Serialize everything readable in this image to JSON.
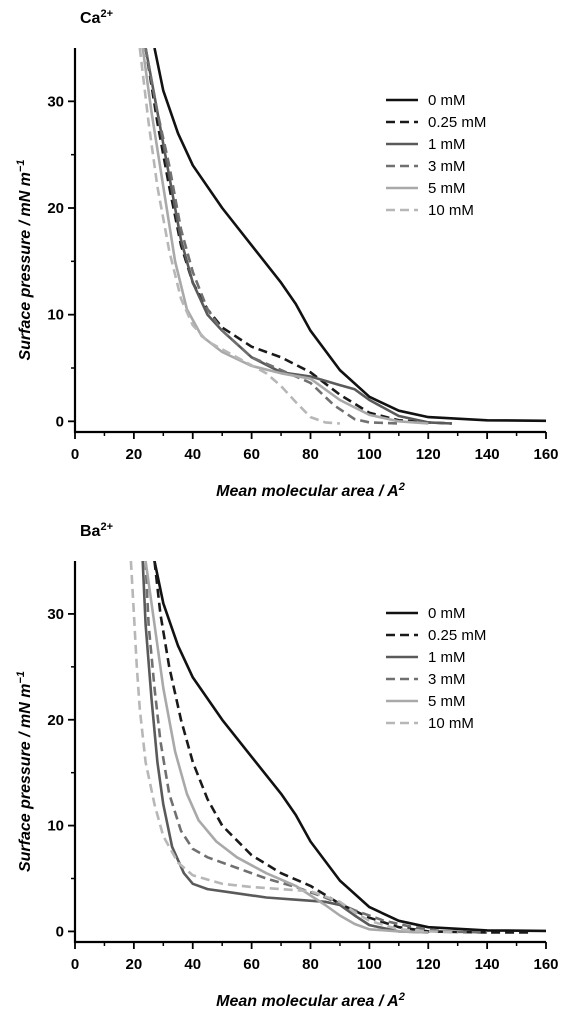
{
  "chart_data": [
    {
      "type": "line",
      "title": "Ca",
      "title_superscript": "2+",
      "xlabel": "Mean molecular area / A",
      "xlabel_superscript": "2",
      "ylabel": "Surface pressure / mN m",
      "ylabel_superscript": "−1",
      "xlim": [
        0,
        160
      ],
      "ylim": [
        -1,
        35
      ],
      "xticks": [
        0,
        20,
        40,
        60,
        80,
        100,
        120,
        140,
        160
      ],
      "yticks": [
        0,
        10,
        20,
        30
      ],
      "grid": false,
      "legend_position": "top-right",
      "series": [
        {
          "name": "0 mM",
          "color": "#111111",
          "dash": "solid",
          "points": [
            [
              27,
              35
            ],
            [
              30,
              31
            ],
            [
              35,
              27
            ],
            [
              40,
              24
            ],
            [
              50,
              20
            ],
            [
              60,
              16.5
            ],
            [
              70,
              13
            ],
            [
              75,
              11
            ],
            [
              80,
              8.5
            ],
            [
              90,
              4.8
            ],
            [
              100,
              2.3
            ],
            [
              110,
              1
            ],
            [
              120,
              0.4
            ],
            [
              140,
              0.1
            ],
            [
              160,
              0.05
            ]
          ]
        },
        {
          "name": "0.25 mM",
          "color": "#1a1a1a",
          "dash": "dashed",
          "points": [
            [
              24,
              35
            ],
            [
              28,
              28
            ],
            [
              32,
              22
            ],
            [
              36,
              16.5
            ],
            [
              40,
              13
            ],
            [
              45,
              10.5
            ],
            [
              50,
              8.8
            ],
            [
              60,
              7
            ],
            [
              70,
              6
            ],
            [
              80,
              4.6
            ],
            [
              90,
              2.5
            ],
            [
              100,
              0.8
            ],
            [
              110,
              0.1
            ],
            [
              120,
              -0.1
            ],
            [
              128,
              -0.2
            ]
          ]
        },
        {
          "name": "1 mM",
          "color": "#5a5a5a",
          "dash": "solid",
          "points": [
            [
              24,
              35
            ],
            [
              28,
              29
            ],
            [
              32,
              23
            ],
            [
              36,
              17
            ],
            [
              40,
              13
            ],
            [
              45,
              10
            ],
            [
              50,
              8.5
            ],
            [
              60,
              6
            ],
            [
              70,
              4.6
            ],
            [
              80,
              4.2
            ],
            [
              90,
              3.4
            ],
            [
              95,
              3
            ],
            [
              100,
              2
            ],
            [
              110,
              0.5
            ],
            [
              120,
              -0.1
            ],
            [
              128,
              -0.2
            ]
          ]
        },
        {
          "name": "3 mM",
          "color": "#707070",
          "dash": "dashed",
          "points": [
            [
              24,
              35
            ],
            [
              28,
              29
            ],
            [
              32,
              24
            ],
            [
              36,
              18
            ],
            [
              40,
              14
            ],
            [
              45,
              10.5
            ],
            [
              50,
              8.5
            ],
            [
              60,
              6
            ],
            [
              70,
              4.8
            ],
            [
              80,
              3.6
            ],
            [
              88,
              1.5
            ],
            [
              95,
              0.2
            ],
            [
              100,
              -0.1
            ],
            [
              110,
              -0.2
            ]
          ]
        },
        {
          "name": "5 mM",
          "color": "#a9a9a9",
          "dash": "solid",
          "points": [
            [
              23,
              35
            ],
            [
              26,
              29
            ],
            [
              30,
              22
            ],
            [
              34,
              15
            ],
            [
              38,
              10.5
            ],
            [
              43,
              8
            ],
            [
              50,
              6.5
            ],
            [
              60,
              5.2
            ],
            [
              70,
              4.5
            ],
            [
              80,
              4
            ],
            [
              90,
              2
            ],
            [
              100,
              0.6
            ],
            [
              110,
              0
            ],
            [
              120,
              -0.2
            ]
          ]
        },
        {
          "name": "10 mM",
          "color": "#b7b7b7",
          "dash": "dashed",
          "points": [
            [
              22,
              35
            ],
            [
              25,
              28
            ],
            [
              28,
              22
            ],
            [
              32,
              16
            ],
            [
              36,
              11.5
            ],
            [
              40,
              9
            ],
            [
              45,
              7.5
            ],
            [
              55,
              6
            ],
            [
              65,
              4.5
            ],
            [
              70,
              3.3
            ],
            [
              75,
              1.8
            ],
            [
              80,
              0.4
            ],
            [
              85,
              -0.1
            ],
            [
              90,
              -0.2
            ]
          ]
        }
      ]
    },
    {
      "type": "line",
      "title": "Ba",
      "title_superscript": "2+",
      "xlabel": "Mean molecular area / A",
      "xlabel_superscript": "2",
      "ylabel": "Surface pressure / mN m",
      "ylabel_superscript": "−1",
      "xlim": [
        0,
        160
      ],
      "ylim": [
        -1,
        35
      ],
      "xticks": [
        0,
        20,
        40,
        60,
        80,
        100,
        120,
        140,
        160
      ],
      "yticks": [
        0,
        10,
        20,
        30
      ],
      "grid": false,
      "legend_position": "top-right",
      "series": [
        {
          "name": "0 mM",
          "color": "#111111",
          "dash": "solid",
          "points": [
            [
              27,
              35
            ],
            [
              30,
              31
            ],
            [
              35,
              27
            ],
            [
              40,
              24
            ],
            [
              50,
              20
            ],
            [
              60,
              16.5
            ],
            [
              70,
              13
            ],
            [
              75,
              11
            ],
            [
              80,
              8.5
            ],
            [
              90,
              4.8
            ],
            [
              100,
              2.3
            ],
            [
              110,
              1
            ],
            [
              120,
              0.4
            ],
            [
              140,
              0.1
            ],
            [
              160,
              0.05
            ]
          ]
        },
        {
          "name": "0.25 mM",
          "color": "#1a1a1a",
          "dash": "dashed",
          "points": [
            [
              27,
              35
            ],
            [
              29,
              30
            ],
            [
              32,
              25
            ],
            [
              36,
              20
            ],
            [
              40,
              16
            ],
            [
              45,
              12.5
            ],
            [
              50,
              10
            ],
            [
              60,
              7.2
            ],
            [
              70,
              5.5
            ],
            [
              80,
              4.3
            ],
            [
              90,
              2.6
            ],
            [
              100,
              1.3
            ],
            [
              110,
              0.4
            ],
            [
              120,
              0
            ],
            [
              140,
              -0.1
            ],
            [
              155,
              -0.1
            ]
          ]
        },
        {
          "name": "1 mM",
          "color": "#5a5a5a",
          "dash": "solid",
          "points": [
            [
              23,
              35
            ],
            [
              24,
              29
            ],
            [
              26,
              22
            ],
            [
              28,
              16
            ],
            [
              30,
              12
            ],
            [
              33,
              8
            ],
            [
              37,
              5.5
            ],
            [
              40,
              4.5
            ],
            [
              45,
              4
            ],
            [
              55,
              3.6
            ],
            [
              65,
              3.2
            ],
            [
              75,
              3
            ],
            [
              85,
              2.8
            ],
            [
              90,
              2.5
            ],
            [
              95,
              1.5
            ],
            [
              100,
              0.6
            ],
            [
              110,
              0
            ],
            [
              120,
              -0.1
            ]
          ]
        },
        {
          "name": "3 mM",
          "color": "#707070",
          "dash": "dashed",
          "points": [
            [
              24,
              35
            ],
            [
              25,
              29
            ],
            [
              27,
              23
            ],
            [
              29,
              18
            ],
            [
              32,
              13
            ],
            [
              36,
              9.5
            ],
            [
              40,
              7.8
            ],
            [
              45,
              7
            ],
            [
              55,
              6
            ],
            [
              65,
              5
            ],
            [
              75,
              4.2
            ],
            [
              85,
              3.2
            ],
            [
              95,
              2
            ],
            [
              105,
              1
            ],
            [
              115,
              0.4
            ],
            [
              125,
              0
            ],
            [
              140,
              -0.1
            ]
          ]
        },
        {
          "name": "5 mM",
          "color": "#a9a9a9",
          "dash": "solid",
          "points": [
            [
              24,
              35
            ],
            [
              27,
              29
            ],
            [
              30,
              23
            ],
            [
              34,
              17
            ],
            [
              38,
              13
            ],
            [
              42,
              10.5
            ],
            [
              48,
              8.5
            ],
            [
              55,
              7
            ],
            [
              65,
              5.5
            ],
            [
              75,
              4.3
            ],
            [
              85,
              2.5
            ],
            [
              90,
              1.5
            ],
            [
              95,
              0.7
            ],
            [
              100,
              0.2
            ],
            [
              110,
              0
            ],
            [
              120,
              -0.1
            ]
          ]
        },
        {
          "name": "10 mM",
          "color": "#b7b7b7",
          "dash": "dashed",
          "points": [
            [
              19,
              35
            ],
            [
              20,
              30
            ],
            [
              21,
              25
            ],
            [
              22,
              21
            ],
            [
              24,
              16
            ],
            [
              27,
              12
            ],
            [
              30,
              9
            ],
            [
              35,
              6.5
            ],
            [
              40,
              5.3
            ],
            [
              50,
              4.5
            ],
            [
              60,
              4.2
            ],
            [
              70,
              4
            ],
            [
              80,
              3.8
            ],
            [
              90,
              2.8
            ],
            [
              95,
              1.8
            ],
            [
              100,
              1
            ],
            [
              110,
              0.2
            ],
            [
              120,
              0
            ],
            [
              130,
              -0.1
            ]
          ]
        }
      ]
    }
  ]
}
